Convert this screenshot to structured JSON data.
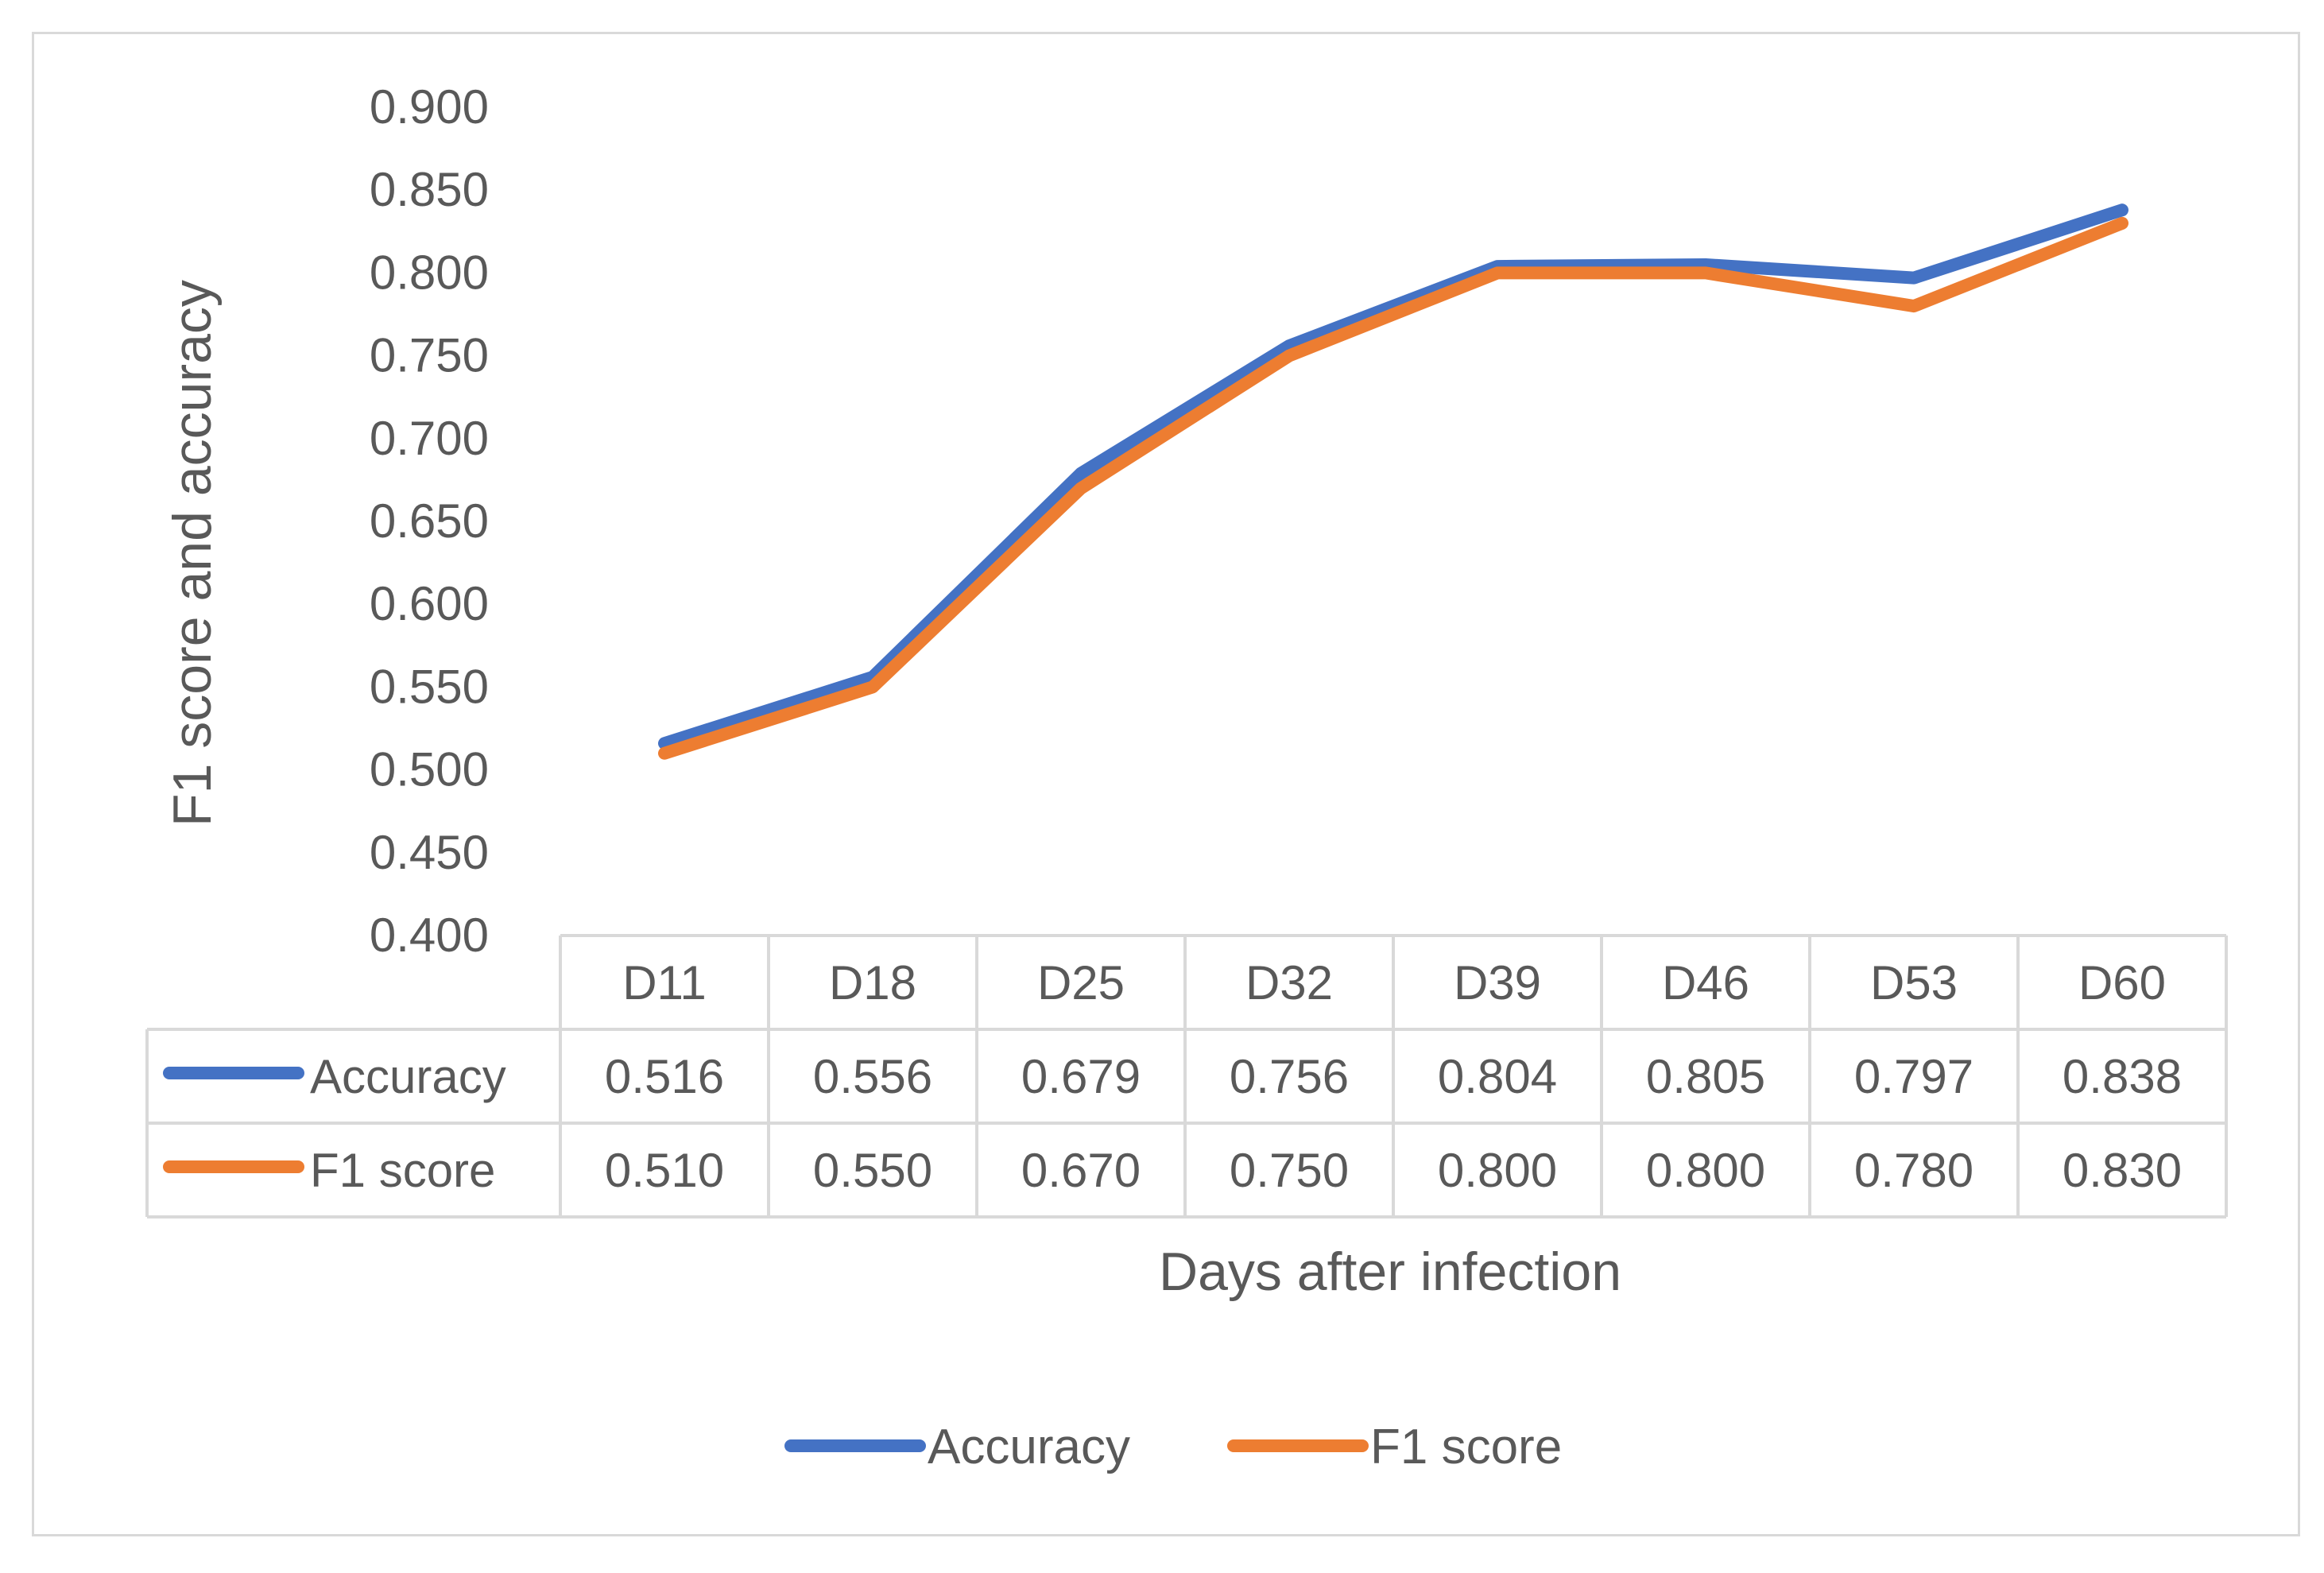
{
  "chart_data": {
    "type": "line",
    "categories": [
      "D11",
      "D18",
      "D25",
      "D32",
      "D39",
      "D46",
      "D53",
      "D60"
    ],
    "series": [
      {
        "name": "Accuracy",
        "values": [
          0.516,
          0.556,
          0.679,
          0.756,
          0.804,
          0.805,
          0.797,
          0.838
        ],
        "labels": [
          "0.516",
          "0.556",
          "0.679",
          "0.756",
          "0.804",
          "0.805",
          "0.797",
          "0.838"
        ],
        "color": "#4472c4"
      },
      {
        "name": "F1 score",
        "values": [
          0.51,
          0.55,
          0.67,
          0.75,
          0.8,
          0.8,
          0.78,
          0.83
        ],
        "labels": [
          "0.510",
          "0.550",
          "0.670",
          "0.750",
          "0.800",
          "0.800",
          "0.780",
          "0.830"
        ],
        "color": "#ed7d31"
      }
    ],
    "yticks": [
      "0.400",
      "0.450",
      "0.500",
      "0.550",
      "0.600",
      "0.650",
      "0.700",
      "0.750",
      "0.800",
      "0.850",
      "0.900"
    ],
    "ylim": [
      0.4,
      0.9
    ],
    "ylabel": "F1 score and accuracy",
    "xlabel": "Days after infection",
    "data_table": true,
    "legend_position": "bottom",
    "grid": false
  }
}
